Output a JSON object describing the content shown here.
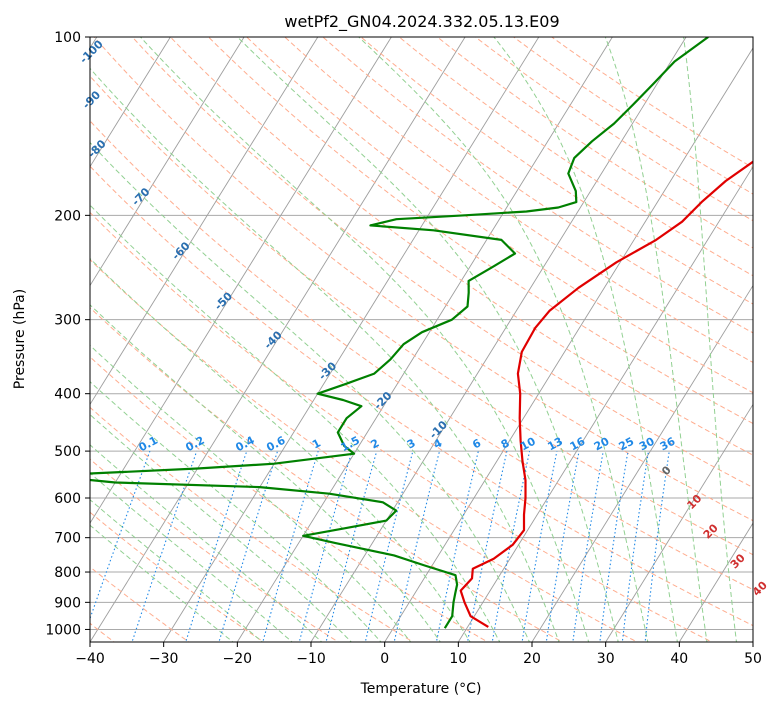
{
  "chart_data": {
    "type": "line",
    "subtype": "skew-t log-p diagram",
    "title": "wetPf2_GN04.2024.332.05.13.E09",
    "xlabel": "Temperature (°C)",
    "ylabel": "Pressure (hPa)",
    "xlim": [
      -40,
      50
    ],
    "ylim": [
      1050,
      100
    ],
    "y_scale": "log",
    "grid": true,
    "x_ticks": [
      "-40",
      "-30",
      "-20",
      "-10",
      "0",
      "10",
      "20",
      "30",
      "40",
      "50"
    ],
    "y_ticks": [
      "100",
      "200",
      "300",
      "400",
      "500",
      "600",
      "700",
      "800",
      "900",
      "1000"
    ],
    "series": [
      {
        "color": "#e00000",
        "points": [
          [
            12.8,
            990
          ],
          [
            9.5,
            950
          ],
          [
            7.5,
            900
          ],
          [
            6.0,
            860
          ],
          [
            6.5,
            820
          ],
          [
            5.8,
            790
          ],
          [
            7.8,
            760
          ],
          [
            9.2,
            720
          ],
          [
            9.5,
            680
          ],
          [
            8.2,
            640
          ],
          [
            7.0,
            600
          ],
          [
            5.5,
            560
          ],
          [
            3.5,
            520
          ],
          [
            1.5,
            480
          ],
          [
            -0.5,
            440
          ],
          [
            -2.5,
            400
          ],
          [
            -4.5,
            370
          ],
          [
            -5.8,
            340
          ],
          [
            -6.0,
            310
          ],
          [
            -5.5,
            290
          ],
          [
            -3.5,
            265
          ],
          [
            -0.5,
            240
          ],
          [
            3.0,
            220
          ],
          [
            5.0,
            205
          ],
          [
            6.0,
            190
          ],
          [
            7.5,
            175
          ],
          [
            10.0,
            160
          ],
          [
            11.5,
            150
          ],
          [
            12.5,
            140
          ],
          [
            14.5,
            130
          ],
          [
            16.5,
            120
          ],
          [
            19.0,
            110
          ],
          [
            22.0,
            100
          ]
        ]
      },
      {
        "color": "#008000",
        "points": [
          [
            7.0,
            995
          ],
          [
            7.0,
            950
          ],
          [
            6.0,
            900
          ],
          [
            5.5,
            870
          ],
          [
            5.0,
            840
          ],
          [
            4.0,
            810
          ],
          [
            -1.0,
            780
          ],
          [
            -6.0,
            750
          ],
          [
            -15.0,
            715
          ],
          [
            -20.0,
            695
          ],
          [
            -15.0,
            675
          ],
          [
            -10.0,
            655
          ],
          [
            -9.5,
            630
          ],
          [
            -12.0,
            610
          ],
          [
            -20.0,
            590
          ],
          [
            -30.0,
            575
          ],
          [
            -50.0,
            565
          ],
          [
            -60.0,
            550
          ],
          [
            -40.0,
            535
          ],
          [
            -30.0,
            525
          ],
          [
            -20.0,
            505
          ],
          [
            -22.0,
            490
          ],
          [
            -24.0,
            465
          ],
          [
            -24.0,
            440
          ],
          [
            -23.0,
            420
          ],
          [
            -26.0,
            410
          ],
          [
            -30.0,
            400
          ],
          [
            -27.0,
            385
          ],
          [
            -24.0,
            370
          ],
          [
            -23.0,
            350
          ],
          [
            -22.5,
            330
          ],
          [
            -21.0,
            315
          ],
          [
            -18.0,
            300
          ],
          [
            -17.0,
            285
          ],
          [
            -18.0,
            270
          ],
          [
            -19.0,
            258
          ],
          [
            -17.0,
            245
          ],
          [
            -15.0,
            232
          ],
          [
            -18.0,
            220
          ],
          [
            -28.0,
            212
          ],
          [
            -37.0,
            208
          ],
          [
            -34.0,
            203
          ],
          [
            -25.0,
            200
          ],
          [
            -17.0,
            197
          ],
          [
            -13.0,
            194
          ],
          [
            -11.0,
            190
          ],
          [
            -12.0,
            182
          ],
          [
            -14.5,
            170
          ],
          [
            -15.0,
            160
          ],
          [
            -14.0,
            150
          ],
          [
            -12.5,
            140
          ],
          [
            -11.5,
            130
          ],
          [
            -10.5,
            120
          ],
          [
            -9.5,
            110
          ],
          [
            -7.0,
            100
          ]
        ]
      }
    ],
    "mixing_ratio_labels": [
      "0.1",
      "0.2",
      "0.4",
      "0.6",
      "1",
      "1.5",
      "2",
      "3",
      "4",
      "6",
      "8",
      "10",
      "13",
      "16",
      "20",
      "25",
      "30",
      "36"
    ],
    "mixing_ratio_values": [
      0.1,
      0.2,
      0.4,
      0.6,
      1,
      1.5,
      2,
      3,
      4,
      6,
      8,
      10,
      13,
      16,
      20,
      25,
      30,
      36
    ],
    "moist_adiabat_labels": [
      "-100",
      "-90",
      "-80",
      "-70",
      "-60",
      "-50",
      "-40",
      "-30",
      "-20",
      "-10"
    ],
    "moist_adiabat_label_pressures": [
      107,
      129,
      156,
      188,
      232,
      282,
      328,
      370,
      415,
      465
    ],
    "wet_bulb_labels": [
      "0",
      "10",
      "20",
      "30",
      "40"
    ],
    "wet_bulb_label_pressures": [
      545,
      615,
      690,
      775,
      862
    ],
    "wet_bulb_label_temps": [
      24.4,
      30.8,
      35.5,
      41.7,
      47.0
    ],
    "colors": {
      "temperature": "#e00000",
      "dewpoint": "#008000",
      "isotherm": "#9e9e9e",
      "dry_adiabat": "#ffad8f",
      "moist_adiabat": "#92d092",
      "mixing_ratio": "#1f88e6",
      "isobar": "#aaaaaa",
      "label_blue": "#2a6fb0",
      "label_red": "#d03030",
      "label_gray": "#666666"
    }
  }
}
